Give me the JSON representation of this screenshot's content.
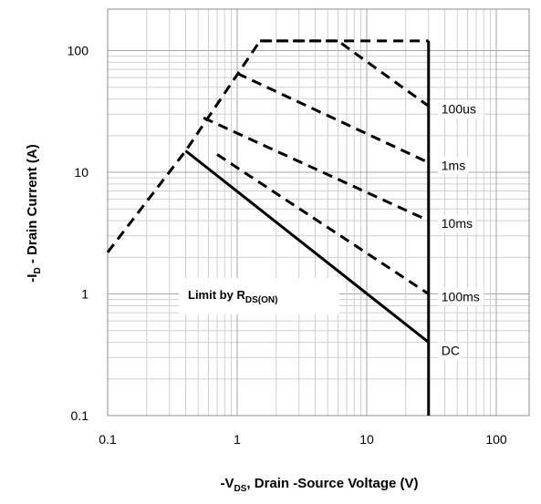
{
  "chart_data": {
    "type": "line",
    "xscale": "log",
    "yscale": "log",
    "xlim": [
      0.1,
      200
    ],
    "ylim": [
      0.1,
      150
    ],
    "grid": true,
    "x_ticks": [
      "0.1",
      "1",
      "10",
      "100"
    ],
    "y_ticks": [
      "0.1",
      "1",
      "10",
      "100"
    ],
    "ylabel_parts": [
      "-I",
      "D",
      " - Drain Current (A)"
    ],
    "xlabel_parts": [
      "-V",
      "DS",
      ", Drain -Source Voltage (V)"
    ],
    "limit_label_parts": [
      "Limit by R",
      "DS(ON)"
    ],
    "limit_line": {
      "x": [
        0.1,
        0.4,
        1.5,
        30
      ],
      "y": [
        2.2,
        15,
        120,
        120
      ]
    },
    "series": [
      {
        "name": "100us",
        "style": "dashed",
        "x": [
          1.5,
          6,
          30
        ],
        "y": [
          120,
          120,
          35
        ]
      },
      {
        "name": "1ms",
        "style": "dashed",
        "x": [
          1.0,
          30
        ],
        "y": [
          65,
          12
        ]
      },
      {
        "name": "10ms",
        "style": "dashed",
        "x": [
          0.55,
          30
        ],
        "y": [
          28,
          4
        ]
      },
      {
        "name": "100ms",
        "style": "dashed",
        "x": [
          0.7,
          30
        ],
        "y": [
          14,
          1
        ]
      },
      {
        "name": "DC",
        "style": "solid",
        "x": [
          0.4,
          30
        ],
        "y": [
          15,
          0.4
        ]
      }
    ],
    "vertical_limit": {
      "x": 30,
      "y": [
        0.1,
        120
      ]
    }
  }
}
